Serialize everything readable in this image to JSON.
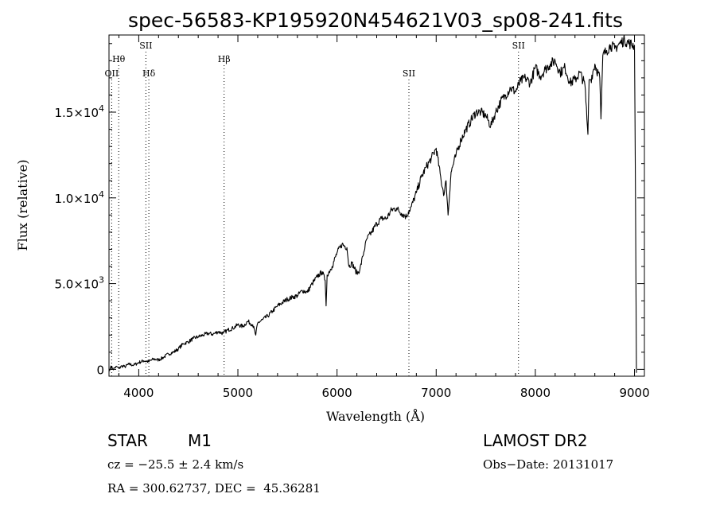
{
  "chart_data": {
    "type": "line",
    "title": "spec-56583-KP195920N454621V03_sp08-241.fits",
    "xlabel": "Wavelength (Å)",
    "ylabel": "Flux (relative)",
    "xlim": [
      3700,
      9100
    ],
    "ylim": [
      -400,
      19500
    ],
    "x_ticks": [
      4000,
      5000,
      6000,
      7000,
      8000,
      9000
    ],
    "x_tick_labels": [
      "4000",
      "5000",
      "6000",
      "7000",
      "8000",
      "9000"
    ],
    "y_ticks": [
      0,
      5000,
      10000,
      15000
    ],
    "y_tick_labels": [
      {
        "mant": "0",
        "exp": ""
      },
      {
        "mant": "5.0×10",
        "exp": "3"
      },
      {
        "mant": "1.0×10",
        "exp": "4"
      },
      {
        "mant": "1.5×10",
        "exp": "4"
      }
    ],
    "grid": false,
    "line_color": "#000000",
    "lines_markers": [
      {
        "label": "OII",
        "x": 3727,
        "row": 3
      },
      {
        "label": "Hθ",
        "x": 3798,
        "row": 2
      },
      {
        "label": "SII",
        "x": 4072,
        "row": 1
      },
      {
        "label": "Hδ",
        "x": 4102,
        "row": 3
      },
      {
        "label": "Hβ",
        "x": 4861,
        "row": 2
      },
      {
        "label": "SII",
        "x": 6725,
        "row": 3
      },
      {
        "label": "SII",
        "x": 7830,
        "row": 1
      }
    ],
    "series": [
      {
        "x": [
          3705,
          3720,
          3740,
          3760,
          3780,
          3800,
          3830,
          3860,
          3900,
          3950,
          4000,
          4050,
          4100,
          4150,
          4200,
          4250,
          4300,
          4350,
          4400,
          4450,
          4500,
          4550,
          4600,
          4650,
          4700,
          4750,
          4800,
          4850,
          4900,
          4950,
          5000,
          5050,
          5100,
          5150,
          5180,
          5200,
          5250,
          5300,
          5350,
          5400,
          5450,
          5500,
          5550,
          5600,
          5650,
          5700,
          5750,
          5800,
          5850,
          5880,
          5890,
          5900,
          5950,
          6000,
          6050,
          6100,
          6120,
          6150,
          6200,
          6230,
          6260,
          6300,
          6350,
          6400,
          6450,
          6500,
          6550,
          6600,
          6650,
          6700,
          6720,
          6750,
          6800,
          6850,
          6900,
          6950,
          7000,
          7050,
          7080,
          7100,
          7120,
          7150,
          7200,
          7250,
          7300,
          7350,
          7400,
          7450,
          7500,
          7550,
          7600,
          7650,
          7700,
          7750,
          7800,
          7850,
          7900,
          7950,
          8000,
          8050,
          8100,
          8150,
          8200,
          8250,
          8300,
          8350,
          8400,
          8450,
          8500,
          8530,
          8542,
          8560,
          8600,
          8650,
          8662,
          8680,
          8720,
          8760,
          8800,
          8850,
          8900,
          8950,
          9000,
          9010,
          9020
        ],
        "y": [
          -100,
          200,
          0,
          100,
          150,
          50,
          200,
          150,
          300,
          250,
          400,
          500,
          450,
          600,
          550,
          700,
          900,
          1000,
          1200,
          1500,
          1600,
          1800,
          1900,
          2000,
          2100,
          2050,
          2200,
          2100,
          2300,
          2400,
          2600,
          2500,
          2800,
          2600,
          2000,
          2700,
          2900,
          3100,
          3400,
          3700,
          3900,
          4100,
          4200,
          4300,
          4600,
          4500,
          5000,
          5400,
          5700,
          5200,
          3700,
          5500,
          6000,
          6800,
          7300,
          7100,
          6000,
          6200,
          5600,
          5800,
          6600,
          7600,
          8000,
          8500,
          8800,
          8800,
          9300,
          9400,
          9100,
          8900,
          9200,
          9500,
          10300,
          11200,
          11800,
          12300,
          12900,
          11000,
          10200,
          11000,
          9000,
          11500,
          12500,
          13400,
          14000,
          14500,
          15000,
          15000,
          14800,
          14200,
          15000,
          15600,
          16000,
          16400,
          16200,
          16800,
          17000,
          16700,
          17600,
          17100,
          17500,
          17800,
          18000,
          17300,
          17600,
          16700,
          16900,
          17300,
          16600,
          13700,
          16900,
          16900,
          17800,
          17000,
          14600,
          18300,
          18600,
          18900,
          18700,
          19000,
          19200,
          19000,
          18900,
          10000,
          -200
        ]
      }
    ]
  },
  "info": {
    "object_class": "STAR",
    "subclass": "M1",
    "cz": "cz = −25.5 ± 2.4 km/s",
    "radec": "RA = 300.62737, DEC =  45.36281",
    "survey": "LAMOST DR2",
    "obs_date": "Obs−Date: 20131017"
  }
}
